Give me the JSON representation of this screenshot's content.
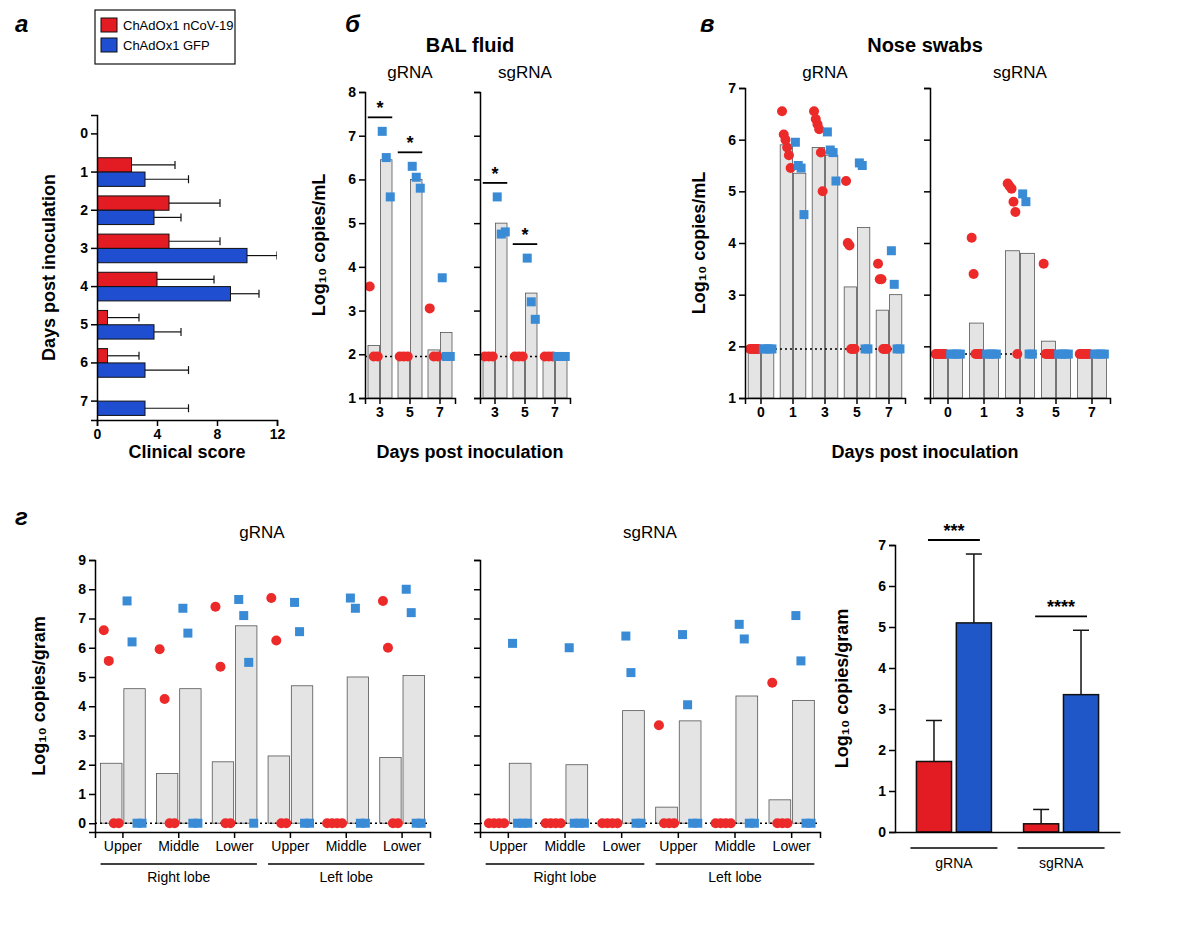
{
  "chart_data": [
    {
      "panel": "а",
      "type": "bar",
      "orientation": "horizontal",
      "categories": [
        0,
        1,
        2,
        3,
        4,
        5,
        6,
        7
      ],
      "y_label": "Days post inoculation",
      "x_label": "Clinical score",
      "xlim": [
        0,
        12
      ],
      "xticks": [
        0,
        4,
        8,
        12
      ],
      "legend": "top-left",
      "series": [
        {
          "name": "ChAdOx1 nCoV-19",
          "color": "#e31b23",
          "values": [
            0,
            2.3,
            4.8,
            4.8,
            4.0,
            0.7,
            0.7,
            0
          ],
          "errors": [
            0,
            2.9,
            3.4,
            3.4,
            3.8,
            2.1,
            2.1,
            0
          ]
        },
        {
          "name": "ChAdOx1 GFP",
          "color": "#1f4fd0",
          "values": [
            0,
            3.2,
            3.8,
            10.0,
            8.9,
            3.8,
            3.2,
            3.2
          ],
          "errors": [
            0,
            2.9,
            1.8,
            2.0,
            1.9,
            1.8,
            2.9,
            2.9
          ]
        }
      ]
    },
    {
      "panel": "б",
      "group_title": "BAL fluid",
      "title": "gRNA",
      "type": "bar",
      "categories": [
        3,
        5,
        7
      ],
      "y_label": "Log₁₀ copies/mL",
      "x_label": "Days post inoculation",
      "ylim": [
        1,
        8
      ],
      "yticks": [
        1,
        2,
        3,
        4,
        5,
        6,
        7,
        8
      ],
      "detection_limit": 1.95,
      "series": [
        {
          "color": "#ec2a2a",
          "marker": "circle",
          "values": [
            2.2,
            1.95,
            2.1
          ],
          "points": [
            [
              3.55,
              1.95,
              1.95
            ],
            [
              1.95,
              1.95,
              1.95
            ],
            [
              3.05,
              1.95,
              1.95
            ]
          ]
        },
        {
          "color": "#3a8bd6",
          "marker": "square",
          "values": [
            6.45,
            6.0,
            2.5
          ],
          "points": [
            [
              7.1,
              6.5,
              5.6
            ],
            [
              6.3,
              6.05,
              5.8
            ],
            [
              3.75,
              1.95,
              1.95
            ]
          ]
        }
      ],
      "annotations": [
        {
          "text": "*",
          "category": 0
        },
        {
          "text": "*",
          "category": 1
        }
      ]
    },
    {
      "title": "sgRNA",
      "type": "bar",
      "categories": [
        3,
        5,
        7
      ],
      "ylim": [
        1,
        8
      ],
      "yticks": [
        1,
        2,
        3,
        4,
        5,
        6,
        7,
        8
      ],
      "tick_labels": "x",
      "detection_limit": 1.95,
      "series": [
        {
          "color": "#ec2a2a",
          "marker": "circle",
          "values": [
            1.95,
            1.95,
            1.95
          ],
          "points": [
            [
              1.95,
              1.95,
              1.95
            ],
            [
              1.95,
              1.95,
              1.95
            ],
            [
              1.95,
              1.95,
              1.95
            ]
          ]
        },
        {
          "color": "#3a8bd6",
          "marker": "square",
          "values": [
            5.0,
            3.4,
            1.95
          ],
          "points": [
            [
              5.6,
              4.75,
              4.8
            ],
            [
              4.2,
              3.2,
              2.8
            ],
            [
              1.95,
              1.95,
              1.95
            ]
          ]
        }
      ],
      "annotations": [
        {
          "text": "*",
          "category": 0
        },
        {
          "text": "*",
          "category": 1
        }
      ]
    },
    {
      "panel": "в",
      "group_title": "Nose swabs",
      "title": "gRNA",
      "type": "bar",
      "categories": [
        0,
        1,
        3,
        5,
        7
      ],
      "y_label": "Log₁₀ copies/mL",
      "x_label": "Days post inoculation",
      "ylim": [
        1,
        7
      ],
      "yticks": [
        1,
        2,
        3,
        4,
        5,
        6,
        7
      ],
      "detection_limit": 1.95,
      "series": [
        {
          "color": "#ec2a2a",
          "marker": "circle",
          "values": [
            1.95,
            5.9,
            5.85,
            3.15,
            2.7
          ],
          "points": [
            [
              1.95,
              1.95,
              1.95,
              1.95,
              1.95,
              1.95
            ],
            [
              6.55,
              6.1,
              6.0,
              5.85,
              5.7,
              5.45
            ],
            [
              6.55,
              6.4,
              6.3,
              6.2,
              5.75,
              5.0
            ],
            [
              5.2,
              4.0,
              3.95,
              1.95,
              1.95,
              1.95
            ],
            [
              3.6,
              3.3,
              3.3,
              1.95,
              1.95,
              1.95
            ]
          ]
        },
        {
          "color": "#3a8bd6",
          "marker": "square",
          "values": [
            1.95,
            5.35,
            5.7,
            4.3,
            3.0
          ],
          "points": [
            [
              1.95,
              1.95,
              1.95,
              1.95
            ],
            [
              5.95,
              5.5,
              5.45,
              4.55
            ],
            [
              6.15,
              5.8,
              5.75,
              5.2
            ],
            [
              5.55,
              5.5,
              1.95,
              1.95
            ],
            [
              3.85,
              3.2,
              1.95,
              1.95
            ]
          ]
        }
      ]
    },
    {
      "title": "sgRNA",
      "type": "bar",
      "categories": [
        0,
        1,
        3,
        5,
        7
      ],
      "ylim": [
        1,
        7
      ],
      "yticks": [
        1,
        2,
        3,
        4,
        5,
        6,
        7
      ],
      "tick_labels": "x",
      "detection_limit": 1.85,
      "series": [
        {
          "color": "#ec2a2a",
          "marker": "circle",
          "values": [
            1.85,
            2.45,
            3.85,
            2.1,
            1.85
          ],
          "points": [
            [
              1.85,
              1.85,
              1.85,
              1.85,
              1.85,
              1.85
            ],
            [
              4.1,
              3.4,
              1.85,
              1.85,
              1.85,
              1.85
            ],
            [
              5.15,
              5.1,
              5.05,
              4.8,
              4.6,
              1.85
            ],
            [
              3.6,
              1.85,
              1.85,
              1.85,
              1.85,
              1.85
            ],
            [
              1.85,
              1.85,
              1.85,
              1.85,
              1.85,
              1.85
            ]
          ]
        },
        {
          "color": "#3a8bd6",
          "marker": "square",
          "values": [
            1.85,
            1.85,
            3.8,
            1.85,
            1.85
          ],
          "points": [
            [
              1.85,
              1.85,
              1.85,
              1.85
            ],
            [
              1.85,
              1.85,
              1.85,
              1.85
            ],
            [
              4.95,
              4.8,
              1.85,
              1.85
            ],
            [
              1.85,
              1.85,
              1.85,
              1.85
            ],
            [
              1.85,
              1.85,
              1.85,
              1.85
            ]
          ]
        }
      ]
    },
    {
      "panel": "г",
      "title": "gRNA",
      "type": "bar",
      "categories": [
        "Upper",
        "Middle",
        "Lower",
        "Upper",
        "Middle",
        "Lower"
      ],
      "category_groups": [
        {
          "label": "Right lobe",
          "count": 3
        },
        {
          "label": "Left lobe",
          "count": 3
        }
      ],
      "y_label": "Log₁₀ copies/gram",
      "ylim": [
        -0.3,
        9
      ],
      "yticks": [
        0,
        1,
        2,
        3,
        4,
        5,
        6,
        7,
        8,
        9
      ],
      "detection_limit": 0,
      "series": [
        {
          "color": "#ec2a2a",
          "marker": "circle",
          "values": [
            2.05,
            1.7,
            2.1,
            2.3,
            0,
            2.25
          ],
          "points": [
            [
              6.6,
              5.55,
              0,
              0
            ],
            [
              5.95,
              4.25,
              0,
              0
            ],
            [
              7.4,
              5.35,
              0,
              0
            ],
            [
              7.7,
              6.25,
              0,
              0
            ],
            [
              0,
              0,
              0,
              0
            ],
            [
              7.6,
              6.0,
              0,
              0
            ]
          ]
        },
        {
          "color": "#3a8bd6",
          "marker": "square",
          "values": [
            4.6,
            4.6,
            6.75,
            4.7,
            5.0,
            5.05
          ],
          "points": [
            [
              7.6,
              6.2,
              0,
              0
            ],
            [
              7.35,
              6.5,
              0,
              0
            ],
            [
              7.65,
              7.1,
              5.5,
              0
            ],
            [
              7.55,
              6.55,
              0,
              0
            ],
            [
              7.7,
              7.35,
              0,
              0
            ],
            [
              8.0,
              7.2,
              0,
              0
            ]
          ]
        }
      ]
    },
    {
      "title": "sgRNA",
      "type": "bar",
      "categories": [
        "Upper",
        "Middle",
        "Lower",
        "Upper",
        "Middle",
        "Lower"
      ],
      "category_groups": [
        {
          "label": "Right lobe",
          "count": 3
        },
        {
          "label": "Left lobe",
          "count": 3
        }
      ],
      "ylim": [
        -0.3,
        9
      ],
      "yticks": [
        0,
        1,
        2,
        3,
        4,
        5,
        6,
        7,
        8,
        9
      ],
      "tick_labels": "x",
      "detection_limit": 0,
      "series": [
        {
          "color": "#ec2a2a",
          "marker": "circle",
          "values": [
            0,
            0,
            0,
            0.55,
            0,
            0.8
          ],
          "points": [
            [
              0,
              0,
              0,
              0
            ],
            [
              0,
              0,
              0,
              0
            ],
            [
              0,
              0,
              0,
              0
            ],
            [
              3.35,
              0,
              0,
              0
            ],
            [
              0,
              0,
              0,
              0
            ],
            [
              4.8,
              0,
              0,
              0
            ]
          ]
        },
        {
          "color": "#3a8bd6",
          "marker": "square",
          "values": [
            2.05,
            2.0,
            3.85,
            3.5,
            4.35,
            4.2
          ],
          "points": [
            [
              6.15,
              0,
              0,
              0
            ],
            [
              6.0,
              0,
              0,
              0
            ],
            [
              6.4,
              5.15,
              0,
              0
            ],
            [
              6.45,
              4.05,
              0,
              0
            ],
            [
              6.8,
              6.3,
              0,
              0
            ],
            [
              7.1,
              5.55,
              0,
              0
            ]
          ]
        }
      ]
    },
    {
      "type": "bar",
      "categories": [
        "gRNA",
        "sgRNA"
      ],
      "y_label": "Log₁₀ copies/gram",
      "ylim": [
        0,
        7
      ],
      "yticks": [
        0,
        1,
        2,
        3,
        4,
        5,
        6,
        7
      ],
      "series": [
        {
          "color": "#e31b23",
          "values": [
            1.72,
            0.2
          ],
          "errors": [
            1.0,
            0.35
          ]
        },
        {
          "color": "#1f57c8",
          "values": [
            5.1,
            3.35
          ],
          "errors": [
            1.68,
            1.57
          ]
        }
      ],
      "annotations": [
        {
          "text": "***",
          "category": 0
        },
        {
          "text": "****",
          "category": 1
        }
      ]
    }
  ]
}
